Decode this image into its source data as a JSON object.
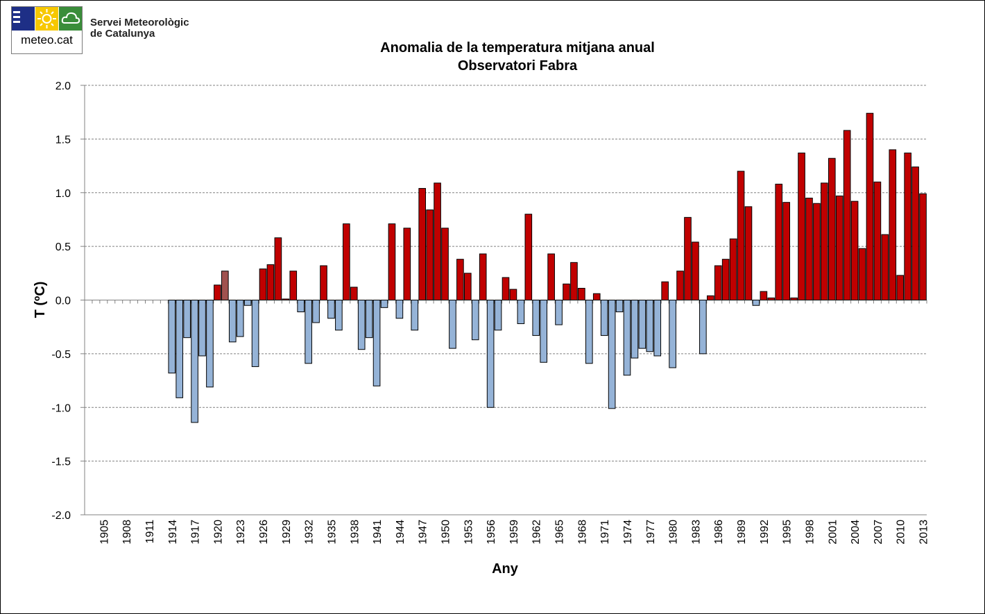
{
  "header": {
    "logo_text": "meteo.cat",
    "org_line1": "Servei Meteorològic",
    "org_line2": "de Catalunya",
    "logo_icons": [
      "menu-bars-icon",
      "sun-icon",
      "cloud-icon"
    ],
    "logo_colors": {
      "blue": "#1e2f86",
      "yellow": "#f7c800",
      "green": "#3a8d3a"
    }
  },
  "chart_data": {
    "type": "bar",
    "title": "Anomalia de la temperatura mitjana anual",
    "subtitle": "Observatori Fabra",
    "xlabel": "Any",
    "ylabel": "T (ºC)",
    "ylim": [
      -2.0,
      2.0
    ],
    "yticks": [
      "2.0",
      "1.5",
      "1.0",
      "0.5",
      "0.0",
      "-0.5",
      "-1.0",
      "-1.5",
      "-2.0"
    ],
    "grid": true,
    "legend": "none",
    "colors": {
      "positive": "#c00000",
      "negative": "#95b3d7",
      "highlight": "#a0524f"
    },
    "x_tick_labels": [
      "1905",
      "1908",
      "1911",
      "1914",
      "1917",
      "1920",
      "1923",
      "1926",
      "1929",
      "1932",
      "1935",
      "1938",
      "1941",
      "1944",
      "1947",
      "1950",
      "1953",
      "1956",
      "1959",
      "1962",
      "1965",
      "1968",
      "1971",
      "1974",
      "1977",
      "1980",
      "1983",
      "1986",
      "1989",
      "1992",
      "1995",
      "1998",
      "2001",
      "2004",
      "2007",
      "2010",
      "2013"
    ],
    "categories": [
      1903,
      1904,
      1905,
      1906,
      1907,
      1908,
      1909,
      1910,
      1911,
      1912,
      1913,
      1914,
      1915,
      1916,
      1917,
      1918,
      1919,
      1920,
      1921,
      1922,
      1923,
      1924,
      1925,
      1926,
      1927,
      1928,
      1929,
      1930,
      1931,
      1932,
      1933,
      1934,
      1935,
      1936,
      1937,
      1938,
      1939,
      1940,
      1941,
      1942,
      1943,
      1944,
      1945,
      1946,
      1947,
      1948,
      1949,
      1950,
      1951,
      1952,
      1953,
      1954,
      1955,
      1956,
      1957,
      1958,
      1959,
      1960,
      1961,
      1962,
      1963,
      1964,
      1965,
      1966,
      1967,
      1968,
      1969,
      1970,
      1971,
      1972,
      1973,
      1974,
      1975,
      1976,
      1977,
      1978,
      1979,
      1980,
      1981,
      1982,
      1983,
      1984,
      1985,
      1986,
      1987,
      1988,
      1989,
      1990,
      1991,
      1992,
      1993,
      1994,
      1995,
      1996,
      1997,
      1998,
      1999,
      2000,
      2001,
      2002,
      2003,
      2004,
      2005,
      2006,
      2007,
      2008,
      2009,
      2010,
      2011,
      2012,
      2013
    ],
    "values": [
      null,
      null,
      null,
      null,
      null,
      null,
      null,
      null,
      null,
      null,
      null,
      -0.68,
      -0.91,
      -0.35,
      -1.14,
      -0.52,
      -0.81,
      0.14,
      0.27,
      -0.39,
      -0.34,
      -0.05,
      -0.62,
      0.29,
      0.33,
      0.58,
      0.01,
      0.27,
      -0.11,
      -0.59,
      -0.21,
      0.32,
      -0.17,
      -0.28,
      0.71,
      0.12,
      -0.46,
      -0.35,
      -0.8,
      -0.07,
      0.71,
      -0.17,
      0.67,
      -0.28,
      1.04,
      0.84,
      1.09,
      0.67,
      -0.45,
      0.38,
      0.25,
      -0.37,
      0.43,
      -1.0,
      -0.28,
      0.21,
      0.1,
      -0.22,
      0.8,
      -0.33,
      -0.58,
      0.43,
      -0.23,
      0.15,
      0.35,
      0.11,
      -0.59,
      0.06,
      -0.33,
      -1.01,
      -0.11,
      -0.7,
      -0.54,
      -0.45,
      -0.48,
      -0.52,
      0.17,
      -0.63,
      0.27,
      0.77,
      0.54,
      -0.5,
      0.04,
      0.32,
      0.38,
      0.57,
      1.2,
      0.87,
      -0.05,
      0.08,
      0.02,
      1.08,
      0.91,
      0.02,
      1.37,
      0.95,
      0.9,
      1.09,
      1.32,
      0.97,
      1.58,
      0.92,
      0.48,
      1.74,
      1.1,
      0.61,
      1.4,
      0.23,
      1.37,
      1.24,
      0.99
    ],
    "highlight_categories": [
      1921
    ]
  }
}
